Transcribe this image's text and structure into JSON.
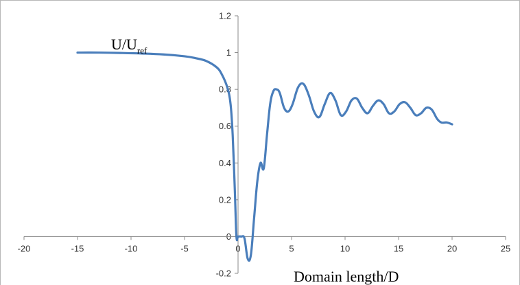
{
  "chart_data": {
    "type": "line",
    "title": "",
    "ylabel": {
      "main": "U/U",
      "sub": "ref"
    },
    "xlabel": "Domain length/D",
    "xlim": [
      -20,
      25
    ],
    "ylim": [
      -0.2,
      1.2
    ],
    "x_ticks": [
      "-20",
      "-15",
      "-10",
      "-5",
      "0",
      "5",
      "10",
      "15",
      "20",
      "25"
    ],
    "y_ticks": [
      "-0.2",
      "0",
      "0.2",
      "0.4",
      "0.6",
      "0.8",
      "1",
      "1.2"
    ],
    "grid": false,
    "color": "#4a7ebb",
    "series": [
      {
        "x": [
          -15,
          -13,
          -11,
          -9,
          -7,
          -5,
          -4,
          -3,
          -2,
          -1.5,
          -1,
          -0.7,
          -0.5,
          -0.3,
          -0.15,
          0,
          0.3,
          0.6,
          0.9,
          1.2,
          1.5,
          1.8,
          2.1,
          2.4,
          2.7,
          3.0,
          3.3,
          3.6,
          3.9,
          4.3,
          4.7,
          5.1,
          5.6,
          6.1,
          6.6,
          7.1,
          7.6,
          8.1,
          8.6,
          9.1,
          9.6,
          10.1,
          10.6,
          11.1,
          11.6,
          12.1,
          12.6,
          13.1,
          13.6,
          14.1,
          14.6,
          15.1,
          15.6,
          16.1,
          16.6,
          17.1,
          17.6,
          18.1,
          18.6,
          19.0,
          19.5,
          20.0
        ],
        "y": [
          1.0,
          1.0,
          0.998,
          0.995,
          0.99,
          0.98,
          0.97,
          0.955,
          0.92,
          0.88,
          0.81,
          0.72,
          0.55,
          0.25,
          0.0,
          0.0,
          0.0,
          -0.01,
          -0.12,
          -0.1,
          0.1,
          0.3,
          0.4,
          0.37,
          0.55,
          0.72,
          0.79,
          0.8,
          0.78,
          0.7,
          0.68,
          0.72,
          0.81,
          0.83,
          0.77,
          0.68,
          0.65,
          0.72,
          0.78,
          0.74,
          0.66,
          0.68,
          0.74,
          0.75,
          0.7,
          0.67,
          0.71,
          0.74,
          0.72,
          0.67,
          0.68,
          0.72,
          0.73,
          0.7,
          0.66,
          0.67,
          0.7,
          0.69,
          0.64,
          0.62,
          0.62,
          0.61
        ]
      }
    ]
  }
}
